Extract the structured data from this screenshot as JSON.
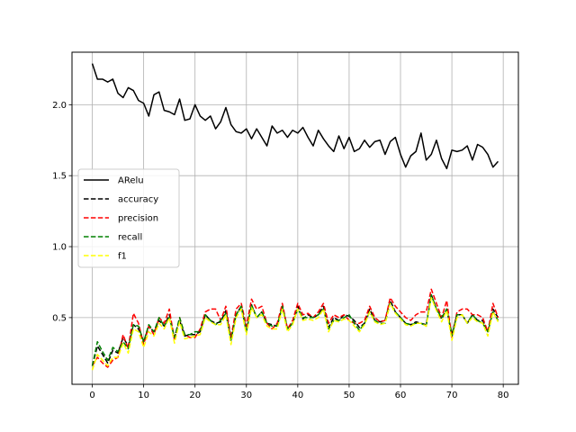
{
  "chart_data": {
    "type": "line",
    "title": "",
    "xlabel": "",
    "ylabel": "",
    "xlim": [
      -3.95,
      82.95
    ],
    "ylim": [
      0.03,
      2.37
    ],
    "xticks": [
      0,
      10,
      20,
      30,
      40,
      50,
      60,
      70,
      80
    ],
    "yticks": [
      0.5,
      1.0,
      1.5,
      2.0
    ],
    "xtick_labels": [
      "0",
      "10",
      "20",
      "30",
      "40",
      "50",
      "60",
      "70",
      "80"
    ],
    "ytick_labels": [
      "0.5",
      "1.0",
      "1.5",
      "2.0"
    ],
    "grid": true,
    "legend_position": "center-left",
    "series": [
      {
        "name": "ARelu",
        "color": "#000000",
        "style": "solid",
        "values": [
          2.29,
          2.18,
          2.18,
          2.16,
          2.18,
          2.08,
          2.05,
          2.12,
          2.1,
          2.03,
          2.01,
          1.92,
          2.07,
          2.09,
          1.96,
          1.95,
          1.93,
          2.04,
          1.89,
          1.9,
          2.0,
          1.92,
          1.89,
          1.92,
          1.83,
          1.88,
          1.98,
          1.86,
          1.81,
          1.8,
          1.83,
          1.76,
          1.83,
          1.77,
          1.71,
          1.85,
          1.8,
          1.82,
          1.77,
          1.82,
          1.8,
          1.84,
          1.77,
          1.71,
          1.82,
          1.76,
          1.71,
          1.67,
          1.78,
          1.69,
          1.77,
          1.67,
          1.69,
          1.75,
          1.7,
          1.74,
          1.75,
          1.65,
          1.74,
          1.77,
          1.65,
          1.56,
          1.64,
          1.67,
          1.8,
          1.61,
          1.65,
          1.75,
          1.62,
          1.55,
          1.68,
          1.67,
          1.68,
          1.71,
          1.61,
          1.72,
          1.7,
          1.65,
          1.56,
          1.6
        ]
      },
      {
        "name": "accuracy",
        "color": "#000000",
        "style": "dashed",
        "values": [
          0.16,
          0.3,
          0.24,
          0.18,
          0.27,
          0.25,
          0.36,
          0.3,
          0.45,
          0.42,
          0.33,
          0.44,
          0.4,
          0.48,
          0.44,
          0.52,
          0.36,
          0.48,
          0.37,
          0.38,
          0.38,
          0.4,
          0.52,
          0.48,
          0.46,
          0.47,
          0.55,
          0.34,
          0.52,
          0.58,
          0.4,
          0.59,
          0.5,
          0.54,
          0.46,
          0.45,
          0.44,
          0.58,
          0.42,
          0.46,
          0.58,
          0.49,
          0.52,
          0.5,
          0.52,
          0.58,
          0.43,
          0.5,
          0.48,
          0.52,
          0.51,
          0.48,
          0.43,
          0.46,
          0.56,
          0.48,
          0.47,
          0.48,
          0.62,
          0.54,
          0.5,
          0.46,
          0.45,
          0.47,
          0.46,
          0.45,
          0.66,
          0.56,
          0.49,
          0.56,
          0.38,
          0.52,
          0.52,
          0.46,
          0.52,
          0.48,
          0.48,
          0.4,
          0.56,
          0.5
        ]
      },
      {
        "name": "precision",
        "color": "#ff0000",
        "style": "dashed",
        "values": [
          0.16,
          0.22,
          0.18,
          0.15,
          0.2,
          0.22,
          0.38,
          0.28,
          0.53,
          0.46,
          0.31,
          0.44,
          0.38,
          0.5,
          0.46,
          0.56,
          0.34,
          0.5,
          0.38,
          0.36,
          0.36,
          0.42,
          0.54,
          0.56,
          0.56,
          0.48,
          0.58,
          0.36,
          0.56,
          0.6,
          0.44,
          0.63,
          0.56,
          0.58,
          0.46,
          0.42,
          0.46,
          0.6,
          0.42,
          0.48,
          0.6,
          0.52,
          0.53,
          0.5,
          0.54,
          0.6,
          0.46,
          0.52,
          0.5,
          0.52,
          0.48,
          0.46,
          0.46,
          0.48,
          0.58,
          0.5,
          0.47,
          0.48,
          0.64,
          0.58,
          0.54,
          0.5,
          0.48,
          0.52,
          0.54,
          0.54,
          0.7,
          0.6,
          0.5,
          0.62,
          0.36,
          0.54,
          0.56,
          0.56,
          0.52,
          0.52,
          0.5,
          0.4,
          0.6,
          0.5
        ]
      },
      {
        "name": "recall",
        "color": "#008000",
        "style": "dashed",
        "values": [
          0.16,
          0.33,
          0.26,
          0.2,
          0.29,
          0.26,
          0.33,
          0.28,
          0.45,
          0.44,
          0.33,
          0.45,
          0.4,
          0.5,
          0.44,
          0.5,
          0.36,
          0.5,
          0.38,
          0.38,
          0.4,
          0.4,
          0.52,
          0.48,
          0.45,
          0.48,
          0.53,
          0.34,
          0.52,
          0.58,
          0.4,
          0.59,
          0.5,
          0.54,
          0.46,
          0.44,
          0.44,
          0.58,
          0.42,
          0.46,
          0.56,
          0.5,
          0.5,
          0.5,
          0.52,
          0.56,
          0.42,
          0.48,
          0.48,
          0.5,
          0.52,
          0.46,
          0.41,
          0.46,
          0.54,
          0.48,
          0.46,
          0.46,
          0.6,
          0.54,
          0.5,
          0.46,
          0.45,
          0.46,
          0.46,
          0.44,
          0.66,
          0.56,
          0.5,
          0.56,
          0.37,
          0.52,
          0.52,
          0.46,
          0.52,
          0.48,
          0.46,
          0.4,
          0.54,
          0.48
        ]
      },
      {
        "name": "f1",
        "color": "#ffff00",
        "style": "dashed",
        "values": [
          0.13,
          0.24,
          0.2,
          0.16,
          0.22,
          0.22,
          0.32,
          0.25,
          0.42,
          0.4,
          0.29,
          0.4,
          0.37,
          0.46,
          0.42,
          0.5,
          0.32,
          0.47,
          0.35,
          0.36,
          0.37,
          0.38,
          0.5,
          0.47,
          0.45,
          0.45,
          0.52,
          0.31,
          0.5,
          0.56,
          0.38,
          0.57,
          0.5,
          0.52,
          0.44,
          0.42,
          0.42,
          0.56,
          0.4,
          0.45,
          0.56,
          0.48,
          0.49,
          0.48,
          0.5,
          0.56,
          0.4,
          0.48,
          0.47,
          0.49,
          0.48,
          0.44,
          0.4,
          0.45,
          0.54,
          0.47,
          0.45,
          0.46,
          0.6,
          0.53,
          0.49,
          0.45,
          0.44,
          0.46,
          0.46,
          0.44,
          0.64,
          0.55,
          0.47,
          0.55,
          0.34,
          0.5,
          0.52,
          0.46,
          0.5,
          0.47,
          0.46,
          0.37,
          0.54,
          0.47
        ]
      }
    ]
  }
}
